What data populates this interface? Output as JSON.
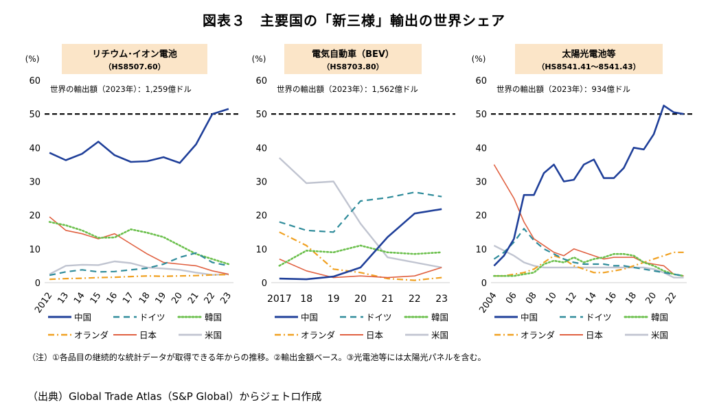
{
  "title": "図表３　主要国の「新三様」輸出の世界シェア",
  "note": "（注）①各品目の継続的な統計データが取得できる年からの推移。②輸出金額ベース。③光電池等には太陽光パネルを含む。",
  "source": "（出典）Global Trade Atlas（S&P Global）からジェトロ作成",
  "chart_data": [
    {
      "type": "line",
      "title": "リチウム･イオン電池",
      "subtitle": "（HS8507.60）",
      "annotation": "世界の輸出額（2023年）：1,259億ドル",
      "ylabel": "(%)",
      "ylim": [
        0,
        60
      ],
      "yticks": [
        "0",
        "10",
        "20",
        "30",
        "40",
        "50",
        "60"
      ],
      "x": [
        "2012",
        "13",
        "14",
        "15",
        "16",
        "17",
        "18",
        "19",
        "20",
        "21",
        "22",
        "23"
      ],
      "reference_line": 50,
      "series": [
        {
          "name": "中国",
          "color": "#1f3f99",
          "values": [
            38.5,
            36.3,
            38.2,
            41.8,
            37.8,
            35.8,
            36.0,
            37.2,
            35.5,
            41.0,
            50.0,
            51.5
          ]
        },
        {
          "name": "ドイツ",
          "color": "#2e8b9a",
          "values": [
            2.2,
            3.2,
            3.8,
            3.2,
            3.3,
            3.8,
            4.3,
            5.5,
            7.5,
            8.8,
            6.0,
            5.0
          ]
        },
        {
          "name": "韓国",
          "color": "#6abf4b",
          "values": [
            18.0,
            17.0,
            15.5,
            13.3,
            13.4,
            15.8,
            14.8,
            13.5,
            11.0,
            8.5,
            7.0,
            5.5
          ]
        },
        {
          "name": "オランダ",
          "color": "#f0a020",
          "values": [
            1.0,
            1.2,
            1.3,
            1.5,
            1.6,
            1.8,
            2.0,
            1.9,
            2.0,
            2.1,
            2.3,
            2.4
          ]
        },
        {
          "name": "日本",
          "color": "#e06040",
          "values": [
            19.5,
            15.5,
            14.5,
            13.0,
            14.5,
            11.5,
            8.5,
            6.0,
            5.5,
            5.0,
            3.5,
            2.5
          ]
        },
        {
          "name": "米国",
          "color": "#c0c4d0",
          "values": [
            2.5,
            5.0,
            5.3,
            5.2,
            6.3,
            5.8,
            4.5,
            4.2,
            3.8,
            3.0,
            2.3,
            2.5
          ]
        }
      ]
    },
    {
      "type": "line",
      "title": "電気自動車（BEV）",
      "subtitle": "（HS8703.80）",
      "annotation": "世界の輸出額（2023年）：1,562億ドル",
      "ylabel": "(%)",
      "ylim": [
        0,
        60
      ],
      "yticks": [
        "0",
        "10",
        "20",
        "30",
        "40",
        "50",
        "60"
      ],
      "x": [
        "2017",
        "18",
        "19",
        "20",
        "21",
        "22",
        "23"
      ],
      "reference_line": 50,
      "series": [
        {
          "name": "中国",
          "color": "#1f3f99",
          "values": [
            1.2,
            1.0,
            1.8,
            4.5,
            13.5,
            20.5,
            21.8
          ]
        },
        {
          "name": "ドイツ",
          "color": "#2e8b9a",
          "values": [
            18.0,
            15.5,
            15.0,
            24.2,
            25.2,
            26.8,
            25.5
          ]
        },
        {
          "name": "韓国",
          "color": "#6abf4b",
          "values": [
            5.0,
            9.5,
            9.0,
            11.0,
            9.0,
            8.5,
            9.0
          ]
        },
        {
          "name": "オランダ",
          "color": "#f0a020",
          "values": [
            15.0,
            11.0,
            4.0,
            3.0,
            1.2,
            0.7,
            1.5
          ]
        },
        {
          "name": "日本",
          "color": "#e06040",
          "values": [
            7.0,
            3.5,
            1.5,
            2.0,
            1.5,
            2.0,
            4.5
          ]
        },
        {
          "name": "米国",
          "color": "#c0c4d0",
          "values": [
            37.0,
            29.5,
            30.0,
            17.5,
            7.5,
            6.0,
            4.5
          ]
        }
      ]
    },
    {
      "type": "line",
      "title": "太陽光電池等",
      "subtitle": "（HS8541.41～8541.43）",
      "annotation": "世界の輸出額（2023年）：934億ドル",
      "ylabel": "(%)",
      "ylim": [
        0,
        60
      ],
      "yticks": [
        "0",
        "10",
        "20",
        "30",
        "40",
        "50",
        "60"
      ],
      "x": [
        "2004",
        "05",
        "06",
        "07",
        "08",
        "09",
        "10",
        "11",
        "12",
        "13",
        "14",
        "15",
        "16",
        "17",
        "18",
        "19",
        "20",
        "21",
        "22",
        "23"
      ],
      "xticks": [
        "2004",
        "06",
        "08",
        "10",
        "12",
        "14",
        "16",
        "18",
        "20",
        "22"
      ],
      "reference_line": 50,
      "series": [
        {
          "name": "中国",
          "color": "#1f3f99",
          "values": [
            5.0,
            8.0,
            13.0,
            26.0,
            26.0,
            32.5,
            35.0,
            30.0,
            30.5,
            35.0,
            36.5,
            31.0,
            31.0,
            34.0,
            40.0,
            39.5,
            44.0,
            52.5,
            50.5,
            50.0
          ]
        },
        {
          "name": "ドイツ",
          "color": "#2e8b9a",
          "values": [
            7.0,
            9.0,
            12.0,
            16.0,
            12.5,
            10.0,
            8.5,
            7.0,
            6.0,
            5.5,
            5.5,
            5.5,
            5.0,
            5.0,
            4.5,
            4.0,
            3.5,
            3.0,
            2.5,
            2.0
          ]
        },
        {
          "name": "韓国",
          "color": "#6abf4b",
          "values": [
            2.0,
            2.0,
            2.0,
            2.5,
            3.0,
            5.5,
            6.5,
            6.0,
            7.5,
            6.0,
            7.0,
            7.5,
            8.5,
            8.5,
            8.0,
            6.0,
            5.0,
            3.5,
            2.5,
            2.0
          ]
        },
        {
          "name": "オランダ",
          "color": "#f0a020",
          "values": [
            2.0,
            2.0,
            2.5,
            3.0,
            4.0,
            6.0,
            8.0,
            7.0,
            5.0,
            4.0,
            3.0,
            3.0,
            3.5,
            4.0,
            5.0,
            6.0,
            7.0,
            8.0,
            9.0,
            9.0
          ]
        },
        {
          "name": "日本",
          "color": "#e06040",
          "values": [
            35.0,
            30.0,
            25.0,
            18.0,
            13.0,
            11.0,
            9.0,
            8.0,
            10.0,
            9.0,
            8.0,
            7.0,
            7.5,
            7.5,
            7.5,
            6.0,
            5.5,
            5.0,
            2.5,
            2.0
          ]
        },
        {
          "name": "米国",
          "color": "#c0c4d0",
          "values": [
            11.0,
            9.5,
            8.0,
            6.0,
            5.0,
            4.5,
            4.5,
            4.5,
            4.5,
            4.5,
            4.5,
            4.5,
            4.5,
            4.5,
            4.5,
            4.5,
            4.0,
            3.0,
            1.5,
            1.5
          ]
        }
      ]
    }
  ]
}
